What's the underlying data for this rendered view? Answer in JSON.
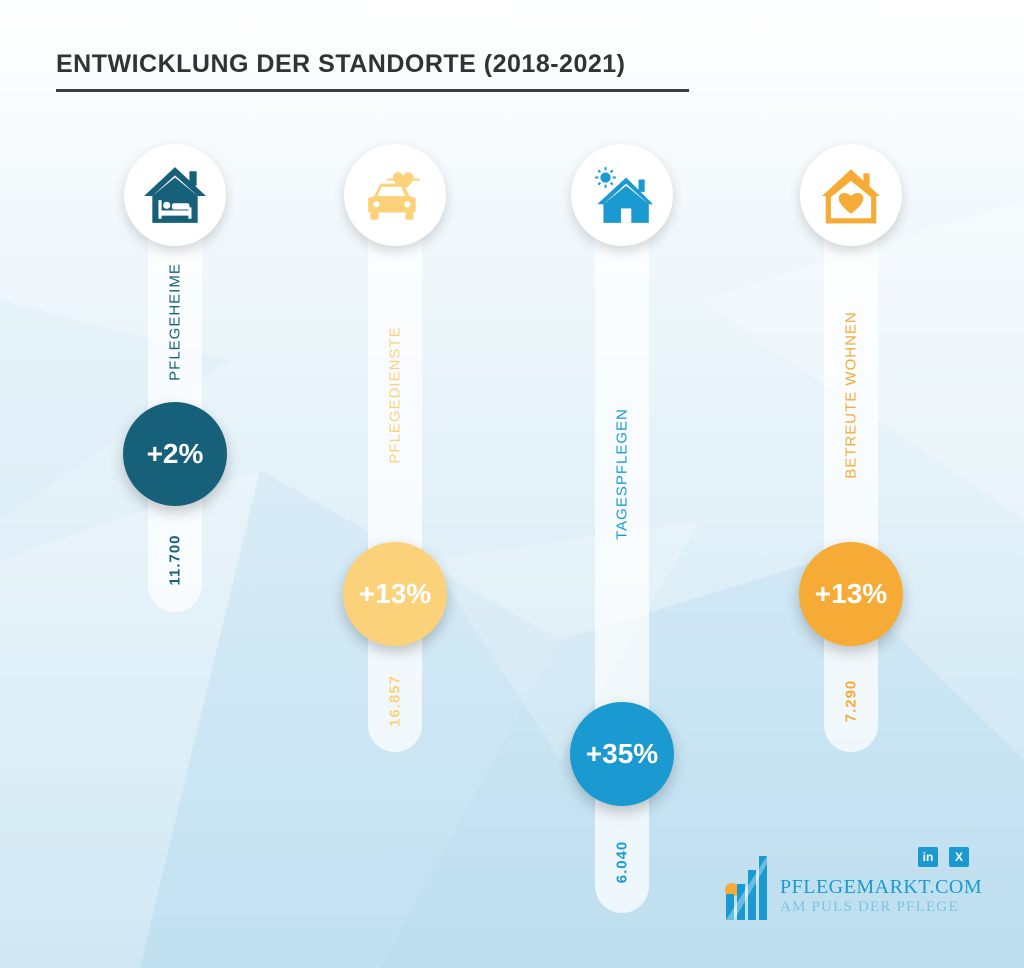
{
  "title": "ENTWICKLUNG DER STANDORTE (2018-2021)",
  "chart_data": {
    "type": "bar",
    "title": "ENTWICKLUNG DER STANDORTE (2018-2021)",
    "categories": [
      "PFLEGEHEIME",
      "PFLEGEDIENSTE",
      "TAGESPFLEGEN",
      "BETREUTE WOHNEN"
    ],
    "values": [
      11700,
      16857,
      6040,
      7290
    ],
    "value_labels": [
      "11.700",
      "16.857",
      "6.040",
      "7.290"
    ],
    "changes": [
      "+2%",
      "+13%",
      "+35%",
      "+13%"
    ],
    "change_values": [
      2,
      13,
      35,
      13
    ],
    "colors": [
      "#17607a",
      "#fbd27a",
      "#1a9ad0",
      "#f5ab35"
    ],
    "icons": [
      "nursing-home-bed-icon",
      "care-car-heartbeat-icon",
      "house-sun-icon",
      "house-heart-icon"
    ]
  },
  "brand": {
    "name": "PFLEGEMARKT.COM",
    "tagline": "AM PULS DER PFLEGE",
    "social": [
      "in",
      "X"
    ]
  }
}
